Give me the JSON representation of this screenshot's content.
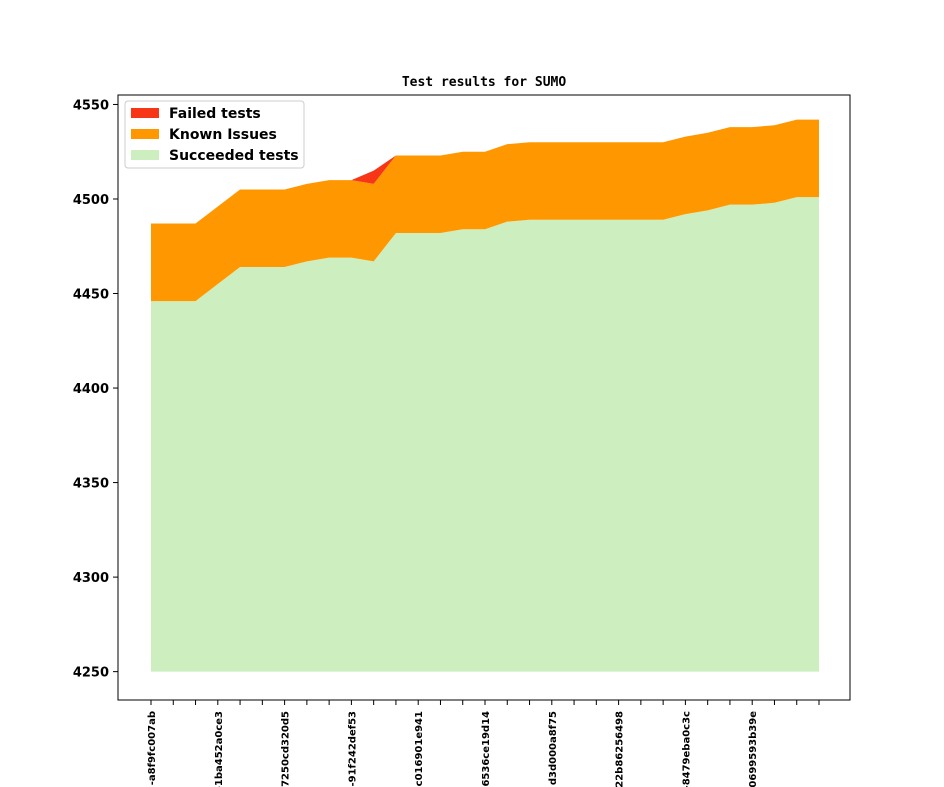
{
  "chart_data": {
    "type": "area",
    "title": "Test results for SUMO",
    "xlabel": "",
    "ylabel": "",
    "ylim": [
      4235,
      4555
    ],
    "baseline": 4250,
    "y_ticks": [
      4250,
      4300,
      4350,
      4400,
      4450,
      4500,
      4550
    ],
    "x_tick_labels": [
      {
        "index": 0,
        "label": "-a8f9fc007ab"
      },
      {
        "index": 3,
        "label": "-1ba452a0ce3"
      },
      {
        "index": 6,
        "label": "7250cd320d5"
      },
      {
        "index": 9,
        "label": "-91f242def53"
      },
      {
        "index": 12,
        "label": "c016901e941"
      },
      {
        "index": 15,
        "label": "6536ce19d14"
      },
      {
        "index": 18,
        "label": "d3d000a8f75"
      },
      {
        "index": 21,
        "label": "22b86256498"
      },
      {
        "index": 24,
        "label": "-8479eba0c3c"
      },
      {
        "index": 27,
        "label": "0699593b39e"
      }
    ],
    "legend_position": "upper-left",
    "series": [
      {
        "name": "Succeeded tests",
        "color": "#cdeebf",
        "values": [
          4446,
          4446,
          4446,
          4455,
          4464,
          4464,
          4464,
          4467,
          4469,
          4469,
          4467,
          4482,
          4482,
          4482,
          4484,
          4484,
          4488,
          4489,
          4489,
          4489,
          4489,
          4489,
          4489,
          4489,
          4492,
          4494,
          4497,
          4497,
          4498,
          4501,
          4501
        ]
      },
      {
        "name": "Known Issues",
        "color": "#ff9800",
        "values": [
          41,
          41,
          41,
          41,
          41,
          41,
          41,
          41,
          41,
          41,
          41,
          41,
          41,
          41,
          41,
          41,
          41,
          41,
          41,
          41,
          41,
          41,
          41,
          41,
          41,
          41,
          41,
          41,
          41,
          41,
          41
        ]
      },
      {
        "name": "Failed tests",
        "color": "#f73618",
        "values": [
          0,
          0,
          0,
          0,
          0,
          0,
          0,
          0,
          0,
          0,
          7,
          0,
          0,
          0,
          0,
          0,
          0,
          0,
          0,
          0,
          0,
          0,
          0,
          0,
          0,
          0,
          0,
          0,
          0,
          0,
          0
        ]
      }
    ]
  }
}
